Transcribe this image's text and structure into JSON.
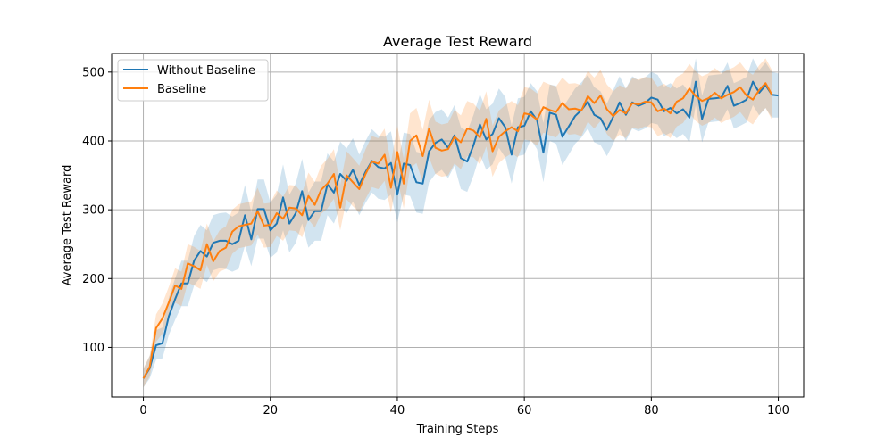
{
  "chart_data": {
    "type": "line",
    "title": "Average Test Reward",
    "xlabel": "Training Steps",
    "ylabel": "Average Test Reward",
    "xlim": [
      -5,
      104
    ],
    "ylim": [
      28,
      527
    ],
    "xticks": [
      0,
      20,
      40,
      60,
      80,
      100
    ],
    "yticks": [
      100,
      200,
      300,
      400,
      500
    ],
    "grid": true,
    "legend": "upper-left",
    "series": [
      {
        "name": "Without Baseline",
        "color": "#1f77b4",
        "values": [
          55,
          70,
          103,
          106,
          145,
          170,
          193,
          193,
          226,
          240,
          232,
          252,
          255,
          255,
          250,
          255,
          292,
          257,
          301,
          301,
          270,
          280,
          318,
          280,
          295,
          327,
          285,
          298,
          298,
          337,
          325,
          352,
          342,
          358,
          336,
          355,
          371,
          362,
          360,
          368,
          322,
          367,
          365,
          340,
          338,
          385,
          397,
          402,
          390,
          408,
          375,
          370,
          394,
          424,
          402,
          410,
          433,
          420,
          380,
          420,
          422,
          443,
          430,
          383,
          441,
          438,
          406,
          421,
          436,
          445,
          457,
          438,
          433,
          416,
          435,
          456,
          438,
          456,
          451,
          455,
          463,
          460,
          443,
          448,
          440,
          446,
          434,
          486,
          432,
          461,
          462,
          463,
          480,
          451,
          455,
          460,
          486,
          470,
          481,
          467,
          466
        ],
        "band": [
          [
            42,
            68
          ],
          [
            55,
            88
          ],
          [
            82,
            125
          ],
          [
            84,
            129
          ],
          [
            118,
            172
          ],
          [
            140,
            200
          ],
          [
            160,
            226
          ],
          [
            160,
            226
          ],
          [
            190,
            262
          ],
          [
            202,
            278
          ],
          [
            195,
            270
          ],
          [
            212,
            292
          ],
          [
            215,
            295
          ],
          [
            214,
            296
          ],
          [
            210,
            290
          ],
          [
            214,
            296
          ],
          [
            248,
            336
          ],
          [
            218,
            296
          ],
          [
            258,
            344
          ],
          [
            258,
            344
          ],
          [
            230,
            310
          ],
          [
            238,
            322
          ],
          [
            270,
            366
          ],
          [
            238,
            322
          ],
          [
            252,
            338
          ],
          [
            280,
            374
          ],
          [
            245,
            325
          ],
          [
            255,
            341
          ],
          [
            255,
            341
          ],
          [
            292,
            382
          ],
          [
            280,
            370
          ],
          [
            305,
            399
          ],
          [
            295,
            389
          ],
          [
            312,
            404
          ],
          [
            292,
            380
          ],
          [
            310,
            400
          ],
          [
            325,
            417
          ],
          [
            316,
            408
          ],
          [
            314,
            406
          ],
          [
            322,
            414
          ],
          [
            282,
            362
          ],
          [
            322,
            412
          ],
          [
            320,
            410
          ],
          [
            296,
            384
          ],
          [
            294,
            382
          ],
          [
            340,
            430
          ],
          [
            352,
            442
          ],
          [
            358,
            446
          ],
          [
            346,
            434
          ],
          [
            364,
            452
          ],
          [
            330,
            420
          ],
          [
            326,
            414
          ],
          [
            350,
            438
          ],
          [
            380,
            468
          ],
          [
            358,
            446
          ],
          [
            366,
            454
          ],
          [
            390,
            476
          ],
          [
            376,
            464
          ],
          [
            338,
            422
          ],
          [
            378,
            462
          ],
          [
            380,
            464
          ],
          [
            402,
            484
          ],
          [
            388,
            472
          ],
          [
            340,
            426
          ],
          [
            400,
            482
          ],
          [
            396,
            480
          ],
          [
            365,
            447
          ],
          [
            380,
            462
          ],
          [
            396,
            476
          ],
          [
            405,
            485
          ],
          [
            418,
            496
          ],
          [
            398,
            478
          ],
          [
            394,
            472
          ],
          [
            378,
            454
          ],
          [
            396,
            474
          ],
          [
            418,
            494
          ],
          [
            400,
            476
          ],
          [
            418,
            494
          ],
          [
            414,
            488
          ],
          [
            418,
            492
          ],
          [
            426,
            500
          ],
          [
            424,
            496
          ],
          [
            407,
            479
          ],
          [
            412,
            484
          ],
          [
            404,
            476
          ],
          [
            410,
            482
          ],
          [
            398,
            470
          ],
          [
            452,
            520
          ],
          [
            398,
            466
          ],
          [
            427,
            495
          ],
          [
            428,
            496
          ],
          [
            429,
            497
          ],
          [
            446,
            514
          ],
          [
            418,
            484
          ],
          [
            422,
            488
          ],
          [
            427,
            493
          ],
          [
            452,
            520
          ],
          [
            437,
            503
          ],
          [
            448,
            514
          ],
          [
            434,
            500
          ],
          [
            434,
            498
          ]
        ]
      },
      {
        "name": "Baseline",
        "color": "#ff7f0e",
        "values": [
          55,
          72,
          128,
          142,
          165,
          190,
          185,
          222,
          218,
          212,
          250,
          225,
          240,
          245,
          268,
          276,
          278,
          280,
          298,
          277,
          278,
          295,
          287,
          303,
          302,
          292,
          320,
          307,
          329,
          338,
          352,
          303,
          350,
          340,
          330,
          352,
          370,
          367,
          380,
          332,
          384,
          338,
          400,
          408,
          378,
          418,
          390,
          386,
          388,
          406,
          398,
          418,
          415,
          405,
          432,
          385,
          406,
          414,
          420,
          414,
          440,
          438,
          431,
          449,
          445,
          442,
          455,
          446,
          447,
          444,
          465,
          455,
          466,
          446,
          436,
          445,
          440,
          455,
          453,
          457,
          456,
          443,
          447,
          440,
          457,
          462,
          476,
          465,
          458,
          462,
          470,
          462,
          467,
          471,
          478,
          466,
          460,
          474,
          484,
          467
        ],
        "band": [
          [
            42,
            70
          ],
          [
            58,
            88
          ],
          [
            108,
            148
          ],
          [
            120,
            164
          ],
          [
            142,
            188
          ],
          [
            165,
            215
          ],
          [
            160,
            210
          ],
          [
            194,
            250
          ],
          [
            190,
            246
          ],
          [
            185,
            240
          ],
          [
            220,
            280
          ],
          [
            196,
            254
          ],
          [
            210,
            270
          ],
          [
            214,
            276
          ],
          [
            236,
            300
          ],
          [
            244,
            308
          ],
          [
            246,
            310
          ],
          [
            248,
            312
          ],
          [
            264,
            332
          ],
          [
            245,
            309
          ],
          [
            246,
            310
          ],
          [
            262,
            328
          ],
          [
            255,
            319
          ],
          [
            270,
            336
          ],
          [
            269,
            335
          ],
          [
            260,
            324
          ],
          [
            286,
            354
          ],
          [
            274,
            340
          ],
          [
            294,
            364
          ],
          [
            302,
            374
          ],
          [
            316,
            388
          ],
          [
            270,
            336
          ],
          [
            315,
            385
          ],
          [
            305,
            375
          ],
          [
            296,
            364
          ],
          [
            316,
            388
          ],
          [
            333,
            407
          ],
          [
            330,
            404
          ],
          [
            342,
            418
          ],
          [
            296,
            368
          ],
          [
            346,
            422
          ],
          [
            302,
            374
          ],
          [
            360,
            440
          ],
          [
            368,
            448
          ],
          [
            340,
            416
          ],
          [
            376,
            460
          ],
          [
            352,
            428
          ],
          [
            348,
            424
          ],
          [
            350,
            426
          ],
          [
            367,
            445
          ],
          [
            359,
            437
          ],
          [
            378,
            458
          ],
          [
            376,
            454
          ],
          [
            366,
            444
          ],
          [
            392,
            472
          ],
          [
            348,
            422
          ],
          [
            368,
            444
          ],
          [
            376,
            452
          ],
          [
            382,
            458
          ],
          [
            376,
            452
          ],
          [
            402,
            478
          ],
          [
            400,
            476
          ],
          [
            393,
            469
          ],
          [
            412,
            486
          ],
          [
            408,
            482
          ],
          [
            405,
            479
          ],
          [
            418,
            492
          ],
          [
            409,
            483
          ],
          [
            410,
            484
          ],
          [
            407,
            481
          ],
          [
            428,
            502
          ],
          [
            418,
            492
          ],
          [
            429,
            503
          ],
          [
            410,
            482
          ],
          [
            400,
            472
          ],
          [
            409,
            481
          ],
          [
            404,
            476
          ],
          [
            419,
            491
          ],
          [
            417,
            489
          ],
          [
            421,
            493
          ],
          [
            420,
            492
          ],
          [
            407,
            479
          ],
          [
            411,
            483
          ],
          [
            404,
            476
          ],
          [
            421,
            493
          ],
          [
            426,
            498
          ],
          [
            440,
            512
          ],
          [
            429,
            501
          ],
          [
            422,
            494
          ],
          [
            426,
            498
          ],
          [
            434,
            506
          ],
          [
            426,
            498
          ],
          [
            431,
            503
          ],
          [
            435,
            507
          ],
          [
            442,
            514
          ],
          [
            430,
            502
          ],
          [
            424,
            496
          ],
          [
            438,
            510
          ],
          [
            448,
            520
          ],
          [
            431,
            503
          ]
        ]
      }
    ]
  }
}
